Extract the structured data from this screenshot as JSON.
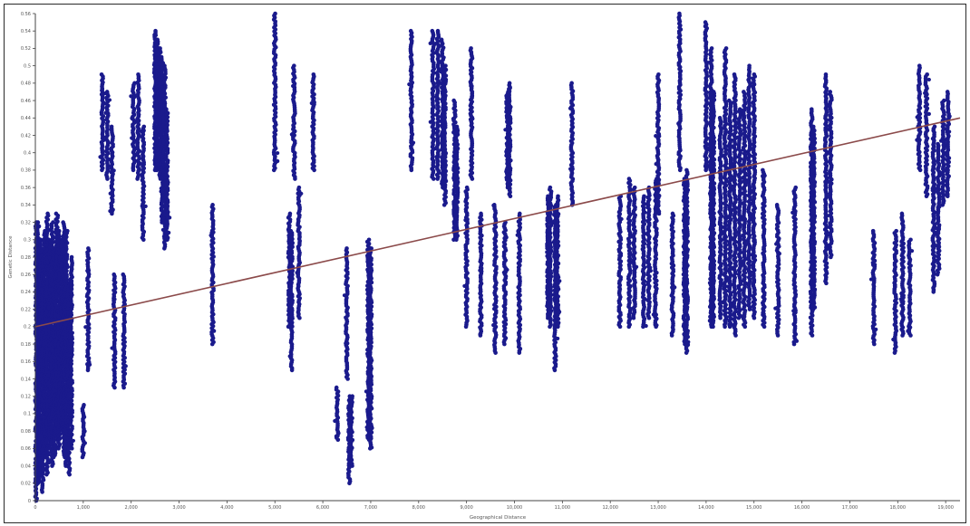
{
  "chart_data": {
    "type": "scatter",
    "title": "",
    "xlabel": "Geographical Distance",
    "ylabel": "Genetic Distance",
    "xlim": [
      0,
      19300
    ],
    "ylim": [
      0,
      0.56
    ],
    "x_ticks": [
      "0",
      "1,000",
      "2,000",
      "3,000",
      "4,000",
      "5,000",
      "6,000",
      "7,000",
      "8,000",
      "9,000",
      "10,000",
      "11,000",
      "12,000",
      "13,000",
      "14,000",
      "15,000",
      "16,000",
      "17,000",
      "18,000",
      "19,000"
    ],
    "y_ticks": [
      "0",
      "0.02",
      "0.04",
      "0.06",
      "0.08",
      "0.1",
      "0.12",
      "0.14",
      "0.16",
      "0.18",
      "0.2",
      "0.22",
      "0.24",
      "0.26",
      "0.28",
      "0.3",
      "0.32",
      "0.34",
      "0.36",
      "0.38",
      "0.4",
      "0.42",
      "0.44",
      "0.46",
      "0.48",
      "0.5",
      "0.52",
      "0.54",
      "0.56"
    ],
    "series_color": "#1a1a8c",
    "trend_color": "#8b4a4a",
    "grid": false,
    "trendline": {
      "x": [
        0,
        19300
      ],
      "y": [
        0.2,
        0.44
      ]
    },
    "columns": [
      {
        "x": 20,
        "ymin": 0.0,
        "ymax": 0.32
      },
      {
        "x": 60,
        "ymin": 0.02,
        "ymax": 0.32
      },
      {
        "x": 100,
        "ymin": 0.03,
        "ymax": 0.3
      },
      {
        "x": 150,
        "ymin": 0.01,
        "ymax": 0.29
      },
      {
        "x": 200,
        "ymin": 0.05,
        "ymax": 0.31
      },
      {
        "x": 250,
        "ymin": 0.03,
        "ymax": 0.33
      },
      {
        "x": 300,
        "ymin": 0.06,
        "ymax": 0.3
      },
      {
        "x": 350,
        "ymin": 0.04,
        "ymax": 0.32
      },
      {
        "x": 400,
        "ymin": 0.05,
        "ymax": 0.29
      },
      {
        "x": 450,
        "ymin": 0.07,
        "ymax": 0.33
      },
      {
        "x": 500,
        "ymin": 0.06,
        "ymax": 0.31
      },
      {
        "x": 550,
        "ymin": 0.08,
        "ymax": 0.3
      },
      {
        "x": 600,
        "ymin": 0.05,
        "ymax": 0.32
      },
      {
        "x": 650,
        "ymin": 0.04,
        "ymax": 0.31
      },
      {
        "x": 700,
        "ymin": 0.03,
        "ymax": 0.25
      },
      {
        "x": 750,
        "ymin": 0.06,
        "ymax": 0.28
      },
      {
        "x": 1000,
        "ymin": 0.05,
        "ymax": 0.11
      },
      {
        "x": 1100,
        "ymin": 0.15,
        "ymax": 0.29
      },
      {
        "x": 1400,
        "ymin": 0.38,
        "ymax": 0.49
      },
      {
        "x": 1500,
        "ymin": 0.37,
        "ymax": 0.47
      },
      {
        "x": 1600,
        "ymin": 0.33,
        "ymax": 0.43
      },
      {
        "x": 1650,
        "ymin": 0.13,
        "ymax": 0.26
      },
      {
        "x": 1850,
        "ymin": 0.13,
        "ymax": 0.26
      },
      {
        "x": 2050,
        "ymin": 0.38,
        "ymax": 0.48
      },
      {
        "x": 2150,
        "ymin": 0.37,
        "ymax": 0.49
      },
      {
        "x": 2250,
        "ymin": 0.3,
        "ymax": 0.43
      },
      {
        "x": 2500,
        "ymin": 0.38,
        "ymax": 0.54
      },
      {
        "x": 2550,
        "ymin": 0.38,
        "ymax": 0.53
      },
      {
        "x": 2600,
        "ymin": 0.37,
        "ymax": 0.52
      },
      {
        "x": 2650,
        "ymin": 0.32,
        "ymax": 0.51
      },
      {
        "x": 2700,
        "ymin": 0.29,
        "ymax": 0.5
      },
      {
        "x": 2750,
        "ymin": 0.3,
        "ymax": 0.45
      },
      {
        "x": 3700,
        "ymin": 0.18,
        "ymax": 0.34
      },
      {
        "x": 5000,
        "ymin": 0.38,
        "ymax": 0.56
      },
      {
        "x": 5300,
        "ymin": 0.2,
        "ymax": 0.33
      },
      {
        "x": 5350,
        "ymin": 0.15,
        "ymax": 0.31
      },
      {
        "x": 5400,
        "ymin": 0.37,
        "ymax": 0.5
      },
      {
        "x": 5500,
        "ymin": 0.21,
        "ymax": 0.36
      },
      {
        "x": 5800,
        "ymin": 0.38,
        "ymax": 0.49
      },
      {
        "x": 6300,
        "ymin": 0.07,
        "ymax": 0.13
      },
      {
        "x": 6500,
        "ymin": 0.14,
        "ymax": 0.29
      },
      {
        "x": 6550,
        "ymin": 0.02,
        "ymax": 0.12
      },
      {
        "x": 6600,
        "ymin": 0.04,
        "ymax": 0.12
      },
      {
        "x": 6950,
        "ymin": 0.07,
        "ymax": 0.3
      },
      {
        "x": 7000,
        "ymin": 0.06,
        "ymax": 0.29
      },
      {
        "x": 7850,
        "ymin": 0.38,
        "ymax": 0.54
      },
      {
        "x": 8300,
        "ymin": 0.37,
        "ymax": 0.54
      },
      {
        "x": 8400,
        "ymin": 0.37,
        "ymax": 0.54
      },
      {
        "x": 8500,
        "ymin": 0.36,
        "ymax": 0.53
      },
      {
        "x": 8550,
        "ymin": 0.34,
        "ymax": 0.5
      },
      {
        "x": 8750,
        "ymin": 0.3,
        "ymax": 0.46
      },
      {
        "x": 8800,
        "ymin": 0.3,
        "ymax": 0.43
      },
      {
        "x": 9000,
        "ymin": 0.2,
        "ymax": 0.36
      },
      {
        "x": 9100,
        "ymin": 0.37,
        "ymax": 0.52
      },
      {
        "x": 9300,
        "ymin": 0.19,
        "ymax": 0.33
      },
      {
        "x": 9600,
        "ymin": 0.17,
        "ymax": 0.34
      },
      {
        "x": 9800,
        "ymin": 0.18,
        "ymax": 0.32
      },
      {
        "x": 9850,
        "ymin": 0.36,
        "ymax": 0.47
      },
      {
        "x": 9900,
        "ymin": 0.35,
        "ymax": 0.48
      },
      {
        "x": 10100,
        "ymin": 0.17,
        "ymax": 0.33
      },
      {
        "x": 10700,
        "ymin": 0.21,
        "ymax": 0.35
      },
      {
        "x": 10750,
        "ymin": 0.2,
        "ymax": 0.36
      },
      {
        "x": 10850,
        "ymin": 0.15,
        "ymax": 0.34
      },
      {
        "x": 10900,
        "ymin": 0.2,
        "ymax": 0.35
      },
      {
        "x": 11200,
        "ymin": 0.34,
        "ymax": 0.48
      },
      {
        "x": 12200,
        "ymin": 0.2,
        "ymax": 0.35
      },
      {
        "x": 12400,
        "ymin": 0.2,
        "ymax": 0.37
      },
      {
        "x": 12500,
        "ymin": 0.21,
        "ymax": 0.36
      },
      {
        "x": 12700,
        "ymin": 0.2,
        "ymax": 0.35
      },
      {
        "x": 12800,
        "ymin": 0.21,
        "ymax": 0.36
      },
      {
        "x": 12950,
        "ymin": 0.2,
        "ymax": 0.37
      },
      {
        "x": 13000,
        "ymin": 0.33,
        "ymax": 0.49
      },
      {
        "x": 13300,
        "ymin": 0.19,
        "ymax": 0.33
      },
      {
        "x": 13450,
        "ymin": 0.38,
        "ymax": 0.56
      },
      {
        "x": 13550,
        "ymin": 0.18,
        "ymax": 0.37
      },
      {
        "x": 13600,
        "ymin": 0.17,
        "ymax": 0.38
      },
      {
        "x": 14000,
        "ymin": 0.38,
        "ymax": 0.55
      },
      {
        "x": 14100,
        "ymin": 0.2,
        "ymax": 0.52
      },
      {
        "x": 14150,
        "ymin": 0.2,
        "ymax": 0.47
      },
      {
        "x": 14300,
        "ymin": 0.21,
        "ymax": 0.44
      },
      {
        "x": 14400,
        "ymin": 0.2,
        "ymax": 0.52
      },
      {
        "x": 14500,
        "ymin": 0.2,
        "ymax": 0.46
      },
      {
        "x": 14600,
        "ymin": 0.19,
        "ymax": 0.49
      },
      {
        "x": 14700,
        "ymin": 0.21,
        "ymax": 0.45
      },
      {
        "x": 14800,
        "ymin": 0.2,
        "ymax": 0.47
      },
      {
        "x": 14900,
        "ymin": 0.22,
        "ymax": 0.5
      },
      {
        "x": 15000,
        "ymin": 0.21,
        "ymax": 0.49
      },
      {
        "x": 15200,
        "ymin": 0.2,
        "ymax": 0.38
      },
      {
        "x": 15500,
        "ymin": 0.19,
        "ymax": 0.34
      },
      {
        "x": 15850,
        "ymin": 0.18,
        "ymax": 0.36
      },
      {
        "x": 16200,
        "ymin": 0.19,
        "ymax": 0.45
      },
      {
        "x": 16250,
        "ymin": 0.22,
        "ymax": 0.43
      },
      {
        "x": 16500,
        "ymin": 0.25,
        "ymax": 0.49
      },
      {
        "x": 16600,
        "ymin": 0.28,
        "ymax": 0.47
      },
      {
        "x": 17500,
        "ymin": 0.18,
        "ymax": 0.31
      },
      {
        "x": 17950,
        "ymin": 0.17,
        "ymax": 0.31
      },
      {
        "x": 18100,
        "ymin": 0.19,
        "ymax": 0.33
      },
      {
        "x": 18250,
        "ymin": 0.19,
        "ymax": 0.3
      },
      {
        "x": 18450,
        "ymin": 0.38,
        "ymax": 0.5
      },
      {
        "x": 18600,
        "ymin": 0.35,
        "ymax": 0.49
      },
      {
        "x": 18750,
        "ymin": 0.24,
        "ymax": 0.43
      },
      {
        "x": 18850,
        "ymin": 0.26,
        "ymax": 0.41
      },
      {
        "x": 18950,
        "ymin": 0.34,
        "ymax": 0.46
      },
      {
        "x": 19050,
        "ymin": 0.35,
        "ymax": 0.47
      }
    ]
  }
}
